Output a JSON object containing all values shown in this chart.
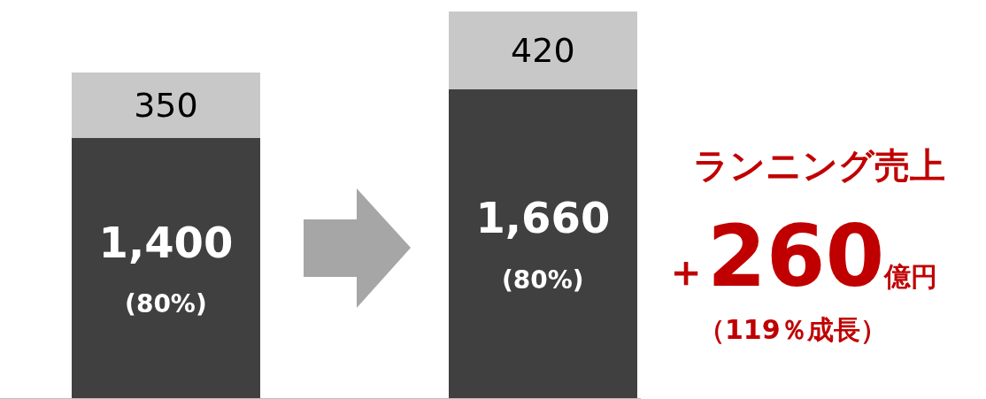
{
  "chart_data": {
    "type": "bar",
    "stacked": true,
    "categories": [
      null,
      null
    ],
    "series": [
      {
        "color": "#404040",
        "values": [
          1400,
          1660
        ],
        "value_labels": [
          "1,400\n(80%)",
          "1,660\n(80%)"
        ]
      },
      {
        "color": "#c8c8c8",
        "values": [
          350,
          420
        ],
        "value_labels": [
          "350",
          "420"
        ]
      }
    ],
    "ylim": [
      0,
      2140
    ],
    "grid": false,
    "legend": false,
    "annotations": [
      "ランニング売上",
      "＋260億円",
      "（119％成長）"
    ]
  }
}
